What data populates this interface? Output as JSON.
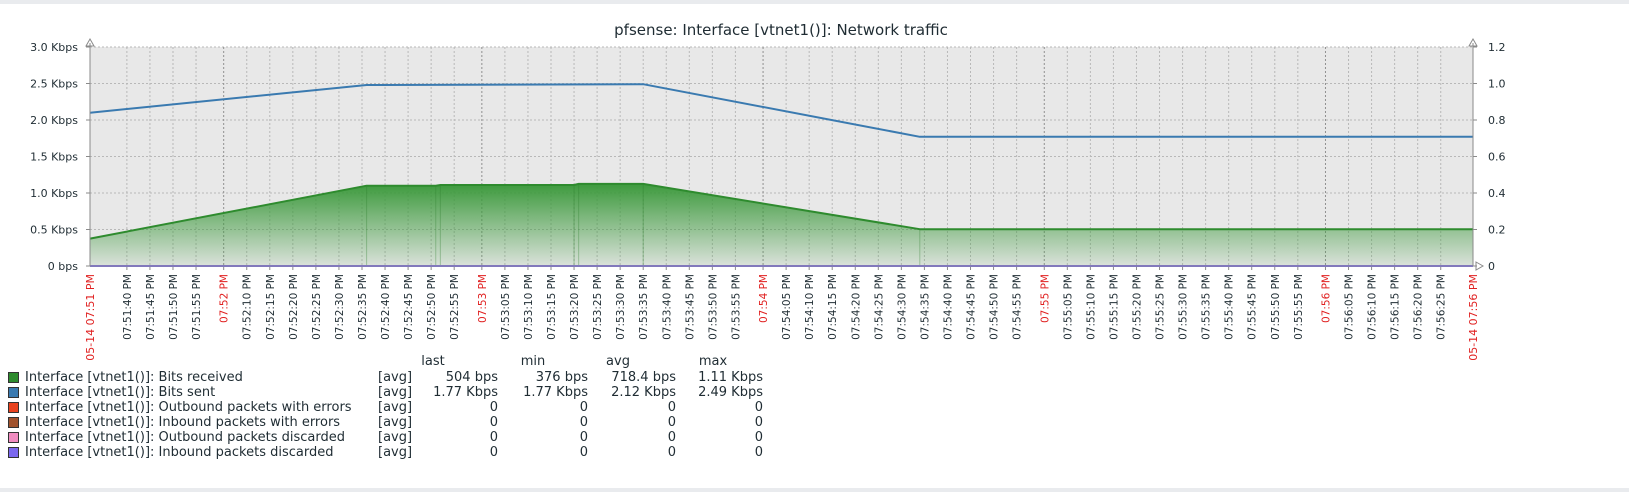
{
  "chart_data": {
    "type": "area",
    "title": "pfsense: Interface [vtnet1()]: Network traffic",
    "y_left_ticks": [
      "0 bps",
      "0.5 Kbps",
      "1.0 Kbps",
      "1.5 Kbps",
      "2.0 Kbps",
      "2.5 Kbps",
      "3.0 Kbps"
    ],
    "y_right_ticks": [
      "0",
      "0.2",
      "0.4",
      "0.6",
      "0.8",
      "1.0",
      "1.2"
    ],
    "ylim_left": [
      0,
      3000
    ],
    "ylim_right": [
      0,
      1.2
    ],
    "x_range_seconds": [
      0,
      300
    ],
    "x_start_label": "05-14 07:51 PM",
    "x_end_label": "05-14 07:56 PM",
    "x_tick_labels": [
      "07:51:40 PM",
      "07:51:45 PM",
      "07:51:50 PM",
      "07:51:55 PM",
      "07:52 PM",
      "07:52:10 PM",
      "07:52:15 PM",
      "07:52:20 PM",
      "07:52:25 PM",
      "07:52:30 PM",
      "07:52:35 PM",
      "07:52:40 PM",
      "07:52:45 PM",
      "07:52:50 PM",
      "07:52:55 PM",
      "07:53 PM",
      "07:53:05 PM",
      "07:53:10 PM",
      "07:53:15 PM",
      "07:53:20 PM",
      "07:53:25 PM",
      "07:53:30 PM",
      "07:53:35 PM",
      "07:53:40 PM",
      "07:53:45 PM",
      "07:53:50 PM",
      "07:53:55 PM",
      "07:54 PM",
      "07:54:05 PM",
      "07:54:10 PM",
      "07:54:15 PM",
      "07:54:20 PM",
      "07:54:25 PM",
      "07:54:30 PM",
      "07:54:35 PM",
      "07:54:40 PM",
      "07:54:45 PM",
      "07:54:50 PM",
      "07:54:55 PM",
      "07:55 PM",
      "07:55:05 PM",
      "07:55:10 PM",
      "07:55:15 PM",
      "07:55:20 PM",
      "07:55:25 PM",
      "07:55:30 PM",
      "07:55:35 PM",
      "07:55:40 PM",
      "07:55:45 PM",
      "07:55:50 PM",
      "07:55:55 PM",
      "07:56 PM",
      "07:56:05 PM",
      "07:56:10 PM",
      "07:56:15 PM",
      "07:56:20 PM",
      "07:56:25 PM"
    ],
    "x_tick_seconds": [
      8,
      13,
      18,
      23,
      29,
      34,
      39,
      44,
      49,
      54,
      59,
      64,
      69,
      74,
      79,
      85,
      90,
      95,
      100,
      105,
      110,
      115,
      120,
      125,
      130,
      135,
      140,
      146,
      151,
      156,
      161,
      166,
      171,
      176,
      181,
      186,
      191,
      196,
      201,
      207,
      212,
      217,
      222,
      227,
      232,
      237,
      242,
      247,
      252,
      257,
      262,
      268,
      273,
      278,
      283,
      288,
      293
    ],
    "x_tick_highlight": [
      "07:52 PM",
      "07:53 PM",
      "07:54 PM",
      "07:55 PM",
      "07:56 PM"
    ],
    "series": [
      {
        "name": "Interface [vtnet1()]: Bits received",
        "color": "#2e8b2e",
        "fill": "area-gradient",
        "axis": "left",
        "points": [
          [
            0,
            376
          ],
          [
            60,
            1100
          ],
          [
            75,
            1100
          ],
          [
            76,
            1110
          ],
          [
            105,
            1110
          ],
          [
            106,
            1125
          ],
          [
            120,
            1125
          ],
          [
            180,
            504
          ],
          [
            300,
            504
          ]
        ]
      },
      {
        "name": "Interface [vtnet1()]: Bits sent",
        "color": "#3a7ab0",
        "fill": "none",
        "axis": "left",
        "points": [
          [
            0,
            2100
          ],
          [
            60,
            2480
          ],
          [
            120,
            2490
          ],
          [
            180,
            1770
          ],
          [
            300,
            1770
          ]
        ]
      },
      {
        "name": "Interface [vtnet1()]: Outbound packets with errors",
        "color": "#e8421f",
        "axis": "right",
        "points": [
          [
            0,
            0
          ],
          [
            300,
            0
          ]
        ]
      },
      {
        "name": "Interface [vtnet1()]: Inbound packets with errors",
        "color": "#a0522d",
        "axis": "right",
        "points": [
          [
            0,
            0
          ],
          [
            300,
            0
          ]
        ]
      },
      {
        "name": "Interface [vtnet1()]: Outbound packets discarded",
        "color": "#f08cc0",
        "axis": "right",
        "points": [
          [
            0,
            0
          ],
          [
            300,
            0
          ]
        ]
      },
      {
        "name": "Interface [vtnet1()]: Inbound packets discarded",
        "color": "#7b68ee",
        "axis": "right",
        "points": [
          [
            0,
            0
          ],
          [
            300,
            0
          ]
        ]
      }
    ]
  },
  "legend": {
    "headers": {
      "last": "last",
      "min": "min",
      "avg": "avg",
      "max": "max"
    },
    "rows": [
      {
        "name": "Interface [vtnet1()]: Bits received",
        "color": "#2e8b2e",
        "func": "[avg]",
        "last": "504 bps",
        "min": "376 bps",
        "avg": "718.4 bps",
        "max": "1.11 Kbps"
      },
      {
        "name": "Interface [vtnet1()]: Bits sent",
        "color": "#3a7ab0",
        "func": "[avg]",
        "last": "1.77 Kbps",
        "min": "1.77 Kbps",
        "avg": "2.12 Kbps",
        "max": "2.49 Kbps"
      },
      {
        "name": "Interface [vtnet1()]: Outbound packets with errors",
        "color": "#e8421f",
        "func": "[avg]",
        "last": "0",
        "min": "0",
        "avg": "0",
        "max": "0"
      },
      {
        "name": "Interface [vtnet1()]: Inbound packets with errors",
        "color": "#a0522d",
        "func": "[avg]",
        "last": "0",
        "min": "0",
        "avg": "0",
        "max": "0"
      },
      {
        "name": "Interface [vtnet1()]: Outbound packets discarded",
        "color": "#f08cc0",
        "func": "[avg]",
        "last": "0",
        "min": "0",
        "avg": "0",
        "max": "0"
      },
      {
        "name": "Interface [vtnet1()]: Inbound packets discarded",
        "color": "#7b68ee",
        "func": "[avg]",
        "last": "0",
        "min": "0",
        "avg": "0",
        "max": "0"
      }
    ]
  },
  "colors": {
    "plot_bg": "#e8e8e8",
    "grid": "#b8b8b8",
    "axis": "#8a8a8a",
    "highlight_label": "#e02020",
    "text": "#1f2c33"
  }
}
